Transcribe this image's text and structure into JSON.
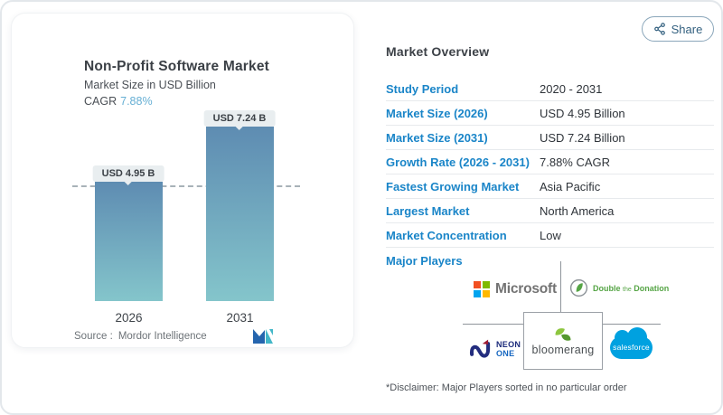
{
  "share_button": {
    "label": "Share"
  },
  "chart_card": {
    "title": "Non-Profit Software Market",
    "subtitle": "Market Size in USD Billion",
    "cagr_label": "CAGR",
    "cagr_value": "7.88%",
    "source_label": "Source :",
    "source_name": "Mordor Intelligence"
  },
  "chart_data": {
    "type": "bar",
    "categories": [
      "2026",
      "2031"
    ],
    "values": [
      4.95,
      7.24
    ],
    "value_labels": [
      "USD 4.95 B",
      "USD 7.24 B"
    ],
    "title": "Non-Profit Software Market",
    "ylabel": "Market Size in USD Billion",
    "unit": "USD Billion",
    "ylim": [
      0,
      7.24
    ],
    "grid": false,
    "bar_color_top": "#5E8CB2",
    "bar_color_bottom": "#84C5CB",
    "reference_line": {
      "style": "dashed",
      "at_value": 4.95
    }
  },
  "overview": {
    "heading": "Market Overview",
    "label_color": "#1A85C8",
    "rows": [
      {
        "label": "Study Period",
        "value": "2020 - 2031"
      },
      {
        "label": "Market Size (2026)",
        "value": "USD 4.95 Billion"
      },
      {
        "label": "Market Size (2031)",
        "value": "USD 7.24 Billion"
      },
      {
        "label": "Growth Rate (2026 - 2031)",
        "value": "7.88% CAGR"
      },
      {
        "label": "Fastest Growing Market",
        "value": "Asia Pacific"
      },
      {
        "label": "Largest Market",
        "value": "North America"
      },
      {
        "label": "Market Concentration",
        "value": "Low"
      }
    ],
    "major_players_label": "Major Players",
    "disclaimer": "*Disclaimer: Major Players sorted in no particular order"
  },
  "players": {
    "microsoft": {
      "name": "Microsoft",
      "square_colors": [
        "#F25022",
        "#7FBA00",
        "#00A4EF",
        "#FFB900"
      ]
    },
    "double_the_donation": {
      "word1": "Double",
      "word2": "the",
      "word3": "Donation",
      "color": "#56A546"
    },
    "neon_one": {
      "line1": "NEON",
      "line2": "ONE",
      "color1": "#1B2A7B",
      "color2": "#1566C0"
    },
    "bloomerang": {
      "name": "bloomerang",
      "leaf_light": "#8DC63F",
      "leaf_dark": "#55982F"
    },
    "salesforce": {
      "name": "salesforce",
      "color": "#00A1E0"
    }
  }
}
